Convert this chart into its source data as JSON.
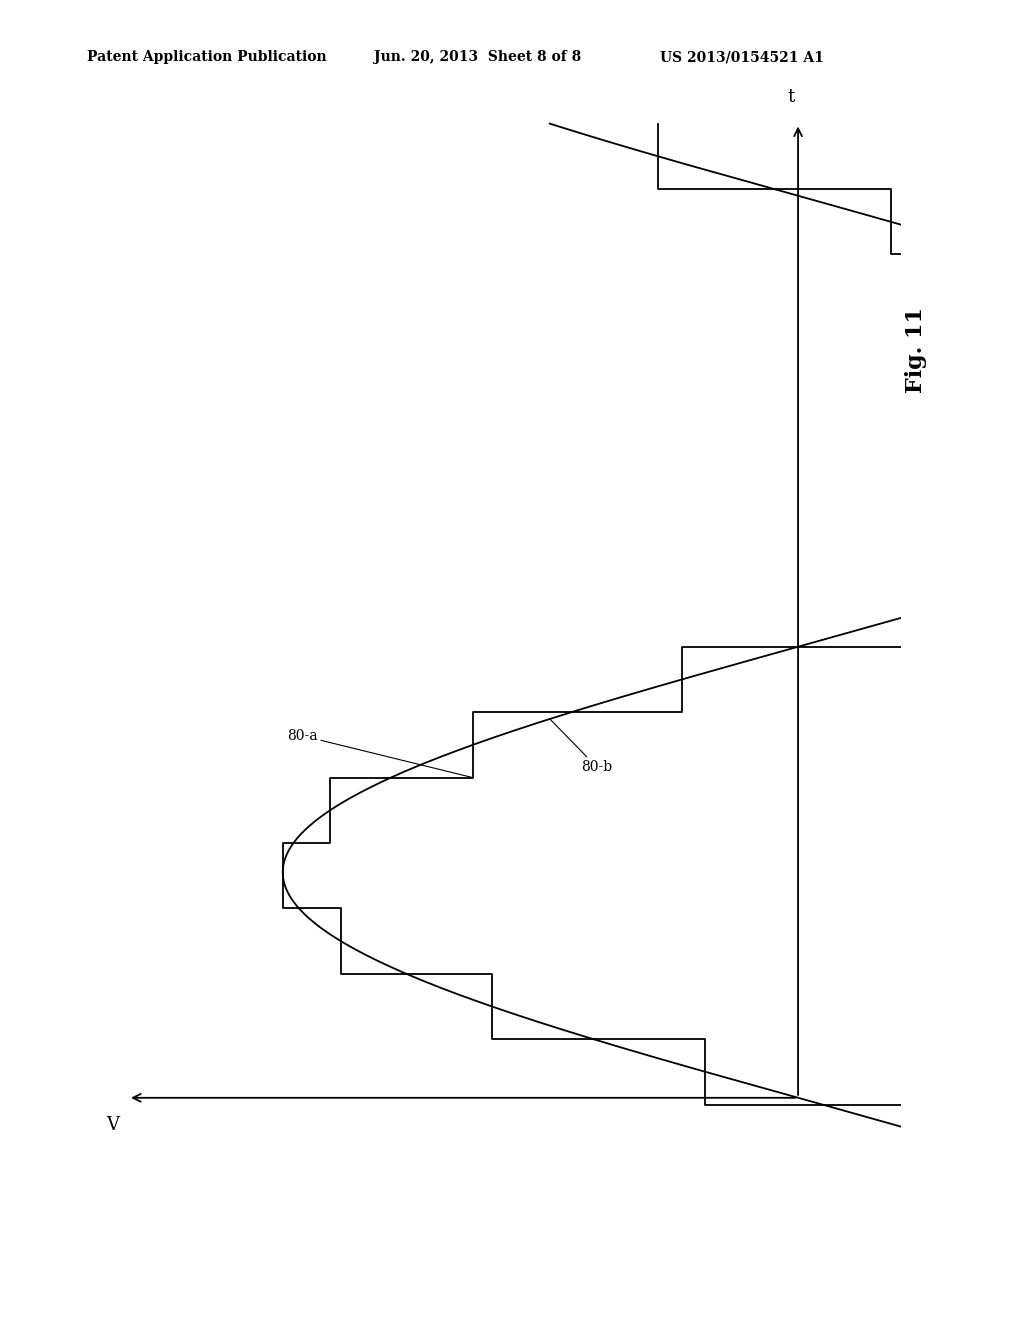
{
  "title": "Fig. 11",
  "header_left": "Patent Application Publication",
  "header_mid": "Jun. 20, 2013  Sheet 8 of 8",
  "header_right": "US 2013/0154521 A1",
  "label_staircase": "80-a",
  "label_curve": "80-b",
  "axis_v_label": "V",
  "axis_t_label": "t",
  "bg_color": "#ffffff",
  "line_color": "#000000",
  "n_steps": 16,
  "curve_amplitude": 1.0,
  "t_min": -0.08,
  "t_max": 1.08,
  "header_fontsize": 10,
  "fig_label_fontsize": 16,
  "axis_label_fontsize": 13,
  "annot_fontsize": 10,
  "lw": 1.3
}
